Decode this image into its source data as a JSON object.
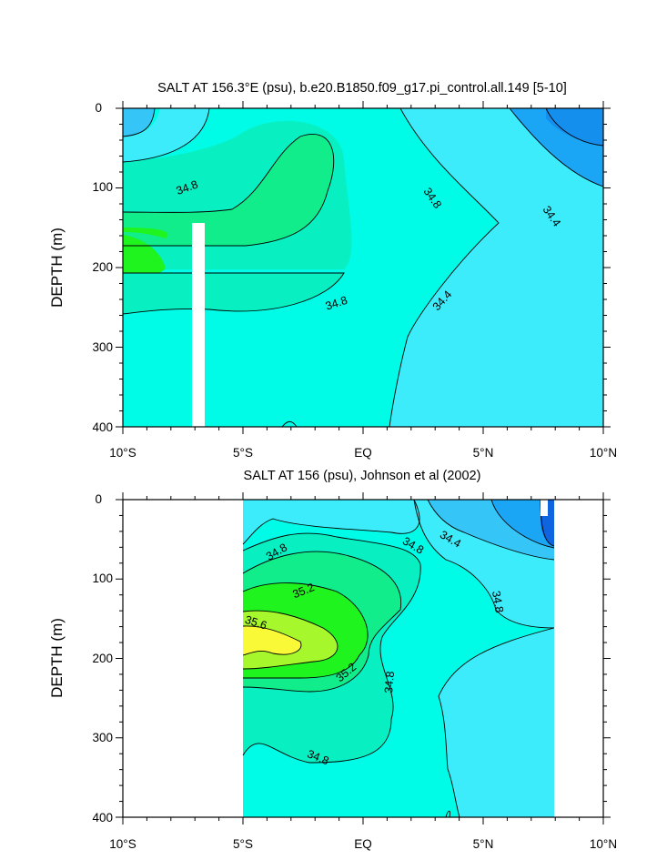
{
  "colors": {
    "c342": "#1aa6f5",
    "c344": "#35c5f7",
    "c346": "#3cecfa",
    "c348": "#00fbe6",
    "c350": "#08f0c2",
    "c352": "#12ed8b",
    "c354": "#20f41f",
    "c356": "#a6f72c",
    "c358": "#f9f937",
    "c340": "#0f64df"
  },
  "chart_data": [
    {
      "type": "contour",
      "title": "SALT AT 156.3°E (psu), b.e20.B1850.f09_g17.pi_control.all.149 [5-10]",
      "ylabel": "DEPTH (m)",
      "xlabel": "",
      "xlim": [
        -10,
        10
      ],
      "ylim": [
        400,
        0
      ],
      "x_tick_labels": [
        "10°S",
        "5°S",
        "EQ",
        "5°N",
        "10°N"
      ],
      "y_tick_labels": [
        "0",
        "100",
        "200",
        "300",
        "400"
      ],
      "contour_labels": [
        "34.8",
        "34.8",
        "34.8",
        "34.4",
        "34.4"
      ],
      "levels": [
        34.2,
        34.4,
        34.6,
        34.8,
        35.0,
        35.2,
        35.4,
        35.6,
        35.8
      ]
    },
    {
      "type": "contour",
      "title": "SALT AT 156 (psu), Johnson et al (2002)",
      "ylabel": "DEPTH (m)",
      "xlabel": "",
      "xlim": [
        -10,
        10
      ],
      "ylim": [
        400,
        0
      ],
      "x_tick_labels": [
        "10°S",
        "5°S",
        "EQ",
        "5°N",
        "10°N"
      ],
      "y_tick_labels": [
        "0",
        "100",
        "200",
        "300",
        "400"
      ],
      "contour_labels": [
        "34.8",
        "35.2",
        "35.6",
        "35.2",
        "34.8",
        "34.8",
        "34.8",
        "34.4",
        "34.8"
      ],
      "levels": [
        34.0,
        34.2,
        34.4,
        34.6,
        34.8,
        35.0,
        35.2,
        35.4,
        35.6,
        35.8
      ]
    }
  ]
}
